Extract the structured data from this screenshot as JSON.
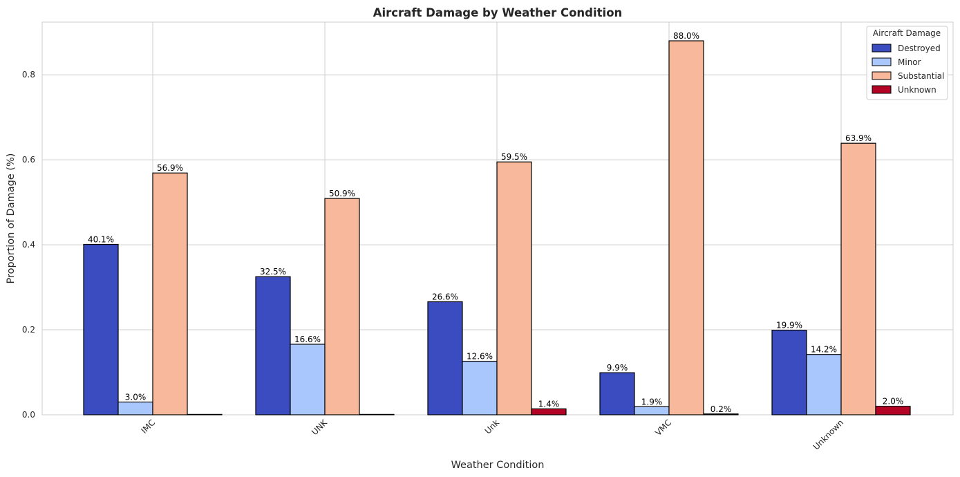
{
  "chart_data": {
    "type": "bar",
    "title": "Aircraft Damage by Weather Condition",
    "xlabel": "Weather Condition",
    "ylabel": "Proportion of Damage (%)",
    "categories": [
      "IMC",
      "UNK",
      "Unk",
      "VMC",
      "Unknown"
    ],
    "ylim": [
      0,
      0.924
    ],
    "yticks": [
      "0.0",
      "0.2",
      "0.4",
      "0.6",
      "0.8"
    ],
    "ytick_values": [
      0,
      0.2,
      0.4,
      0.6,
      0.8
    ],
    "grid": true,
    "legend": {
      "title": "Aircraft Damage",
      "placement": "top-right"
    },
    "series": [
      {
        "name": "Destroyed",
        "color": "#3b4cc0",
        "values": [
          0.401,
          0.325,
          0.266,
          0.099,
          0.199
        ],
        "labels": [
          "40.1%",
          "32.5%",
          "26.6%",
          "9.9%",
          "19.9%"
        ]
      },
      {
        "name": "Minor",
        "color": "#aac7fd",
        "values": [
          0.03,
          0.166,
          0.126,
          0.019,
          0.142
        ],
        "labels": [
          "3.0%",
          "16.6%",
          "12.6%",
          "1.9%",
          "14.2%"
        ]
      },
      {
        "name": "Substantial",
        "color": "#f7b89c",
        "values": [
          0.569,
          0.509,
          0.595,
          0.88,
          0.639
        ],
        "labels": [
          "56.9%",
          "50.9%",
          "59.5%",
          "88.0%",
          "63.9%"
        ]
      },
      {
        "name": "Unknown",
        "color": "#b40426",
        "values": [
          0.0,
          0.0,
          0.014,
          0.002,
          0.02
        ],
        "labels": [
          "",
          "",
          "1.4%",
          "0.2%",
          "2.0%"
        ]
      }
    ]
  }
}
